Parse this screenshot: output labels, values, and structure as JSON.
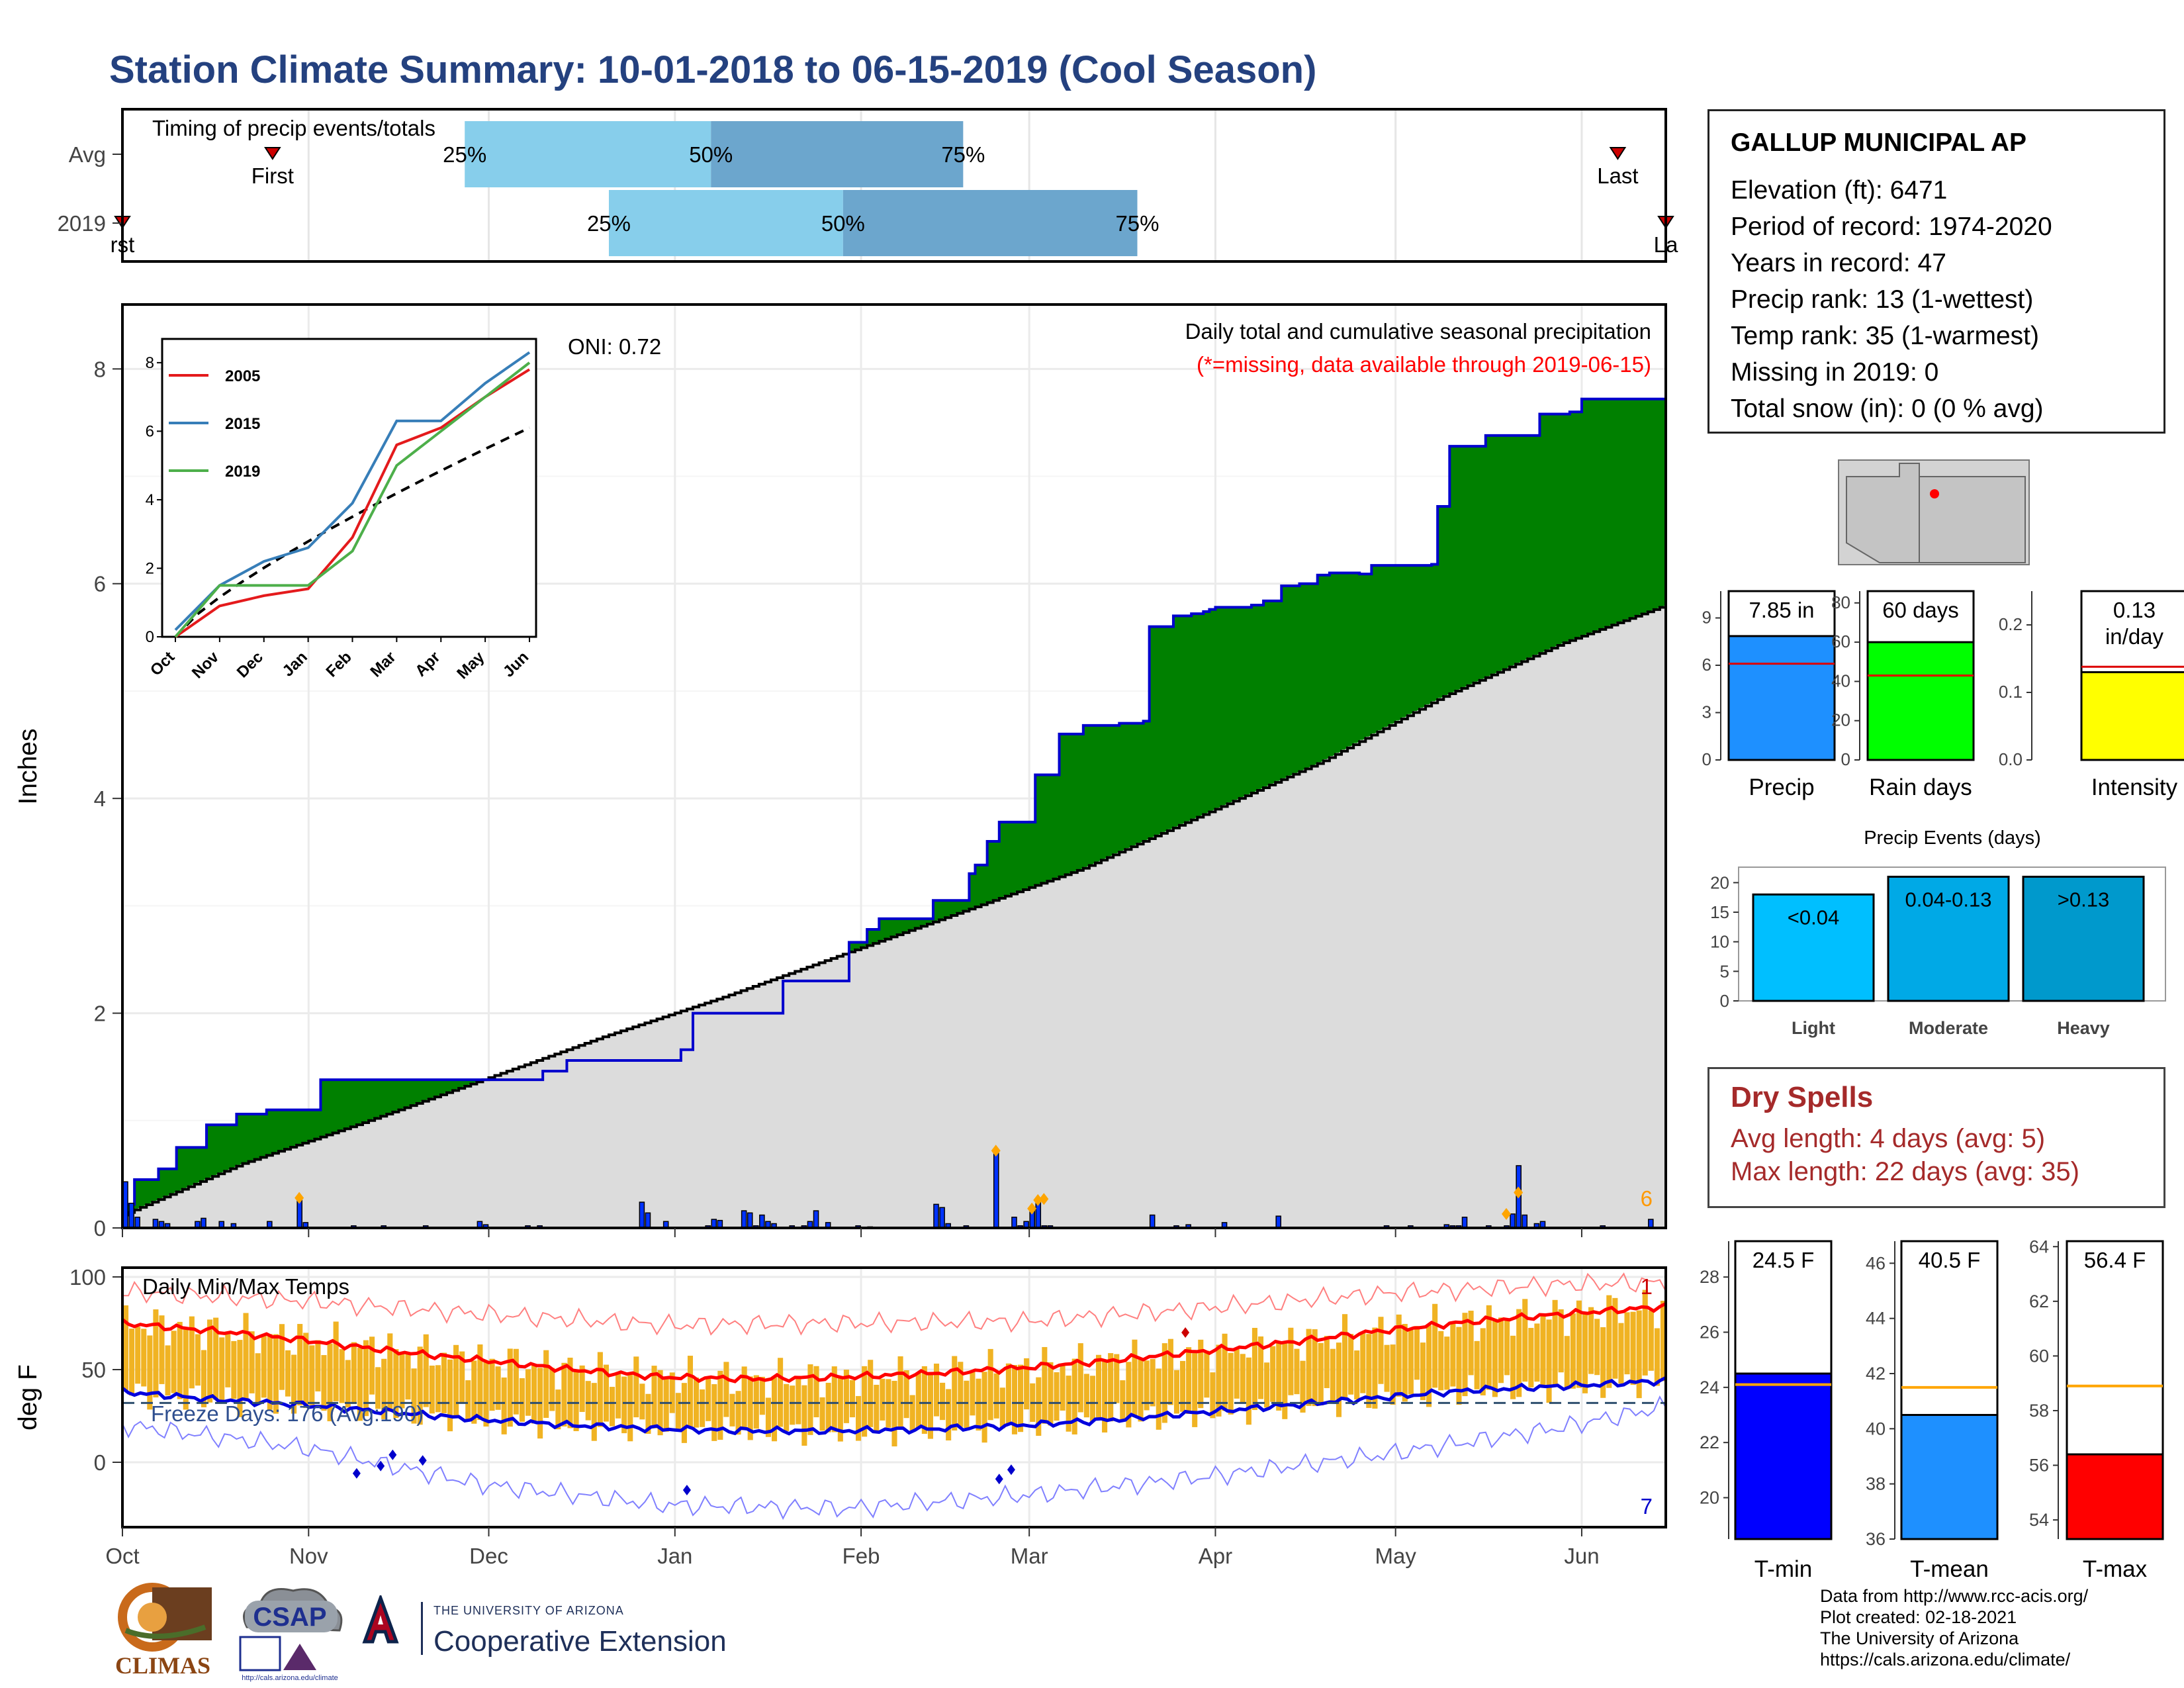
{
  "title": "Station Climate Summary: 10-01-2018 to 06-15-2019 (Cool Season)",
  "colors": {
    "title": "#24417f",
    "cumulative_avg_fill": "#dcdcdc",
    "above_avg_fill": "#008000",
    "below_avg_fill": "#8b5a00",
    "cumulative_line": "#0000cd",
    "daily_bars": "#0033ff",
    "temp_bars": "#f0b323",
    "tmax_avg": "#ff0000",
    "tmin_avg": "#0000dd",
    "records_max": "#ff8080",
    "records_min": "#8080ff",
    "dry_spells": "#a52a2a",
    "missing_note": "#ff0000",
    "count_label": "#ff9900"
  },
  "timing_panel": {
    "label": "Timing of precip events/totals",
    "rows": [
      {
        "name": "Avg",
        "first": "First",
        "last": "Last",
        "p25": "25%",
        "p50": "50%",
        "p75": "75%"
      },
      {
        "name": "2019",
        "first": "rst",
        "last": "La",
        "p25": "25%",
        "p50": "50%",
        "p75": "75%"
      }
    ]
  },
  "precip_panel": {
    "y_axis_label": "Inches",
    "y_ticks": [
      "0",
      "2",
      "4",
      "6",
      "8"
    ],
    "subtitle": "Daily total and cumulative seasonal precipitation",
    "missing_note": "(*=missing, data available through 2019-06-15)",
    "oni": "ONI: 0.72",
    "count_label": "6"
  },
  "inset": {
    "legend": [
      "2005",
      "2015",
      "2019"
    ],
    "legend_colors": [
      "#e41a1c",
      "#377eb8",
      "#4daf4a"
    ],
    "y_ticks": [
      "0",
      "2",
      "4",
      "6",
      "8"
    ],
    "x_ticks": [
      "Oct",
      "Nov",
      "Dec",
      "Jan",
      "Feb",
      "Mar",
      "Apr",
      "May",
      "Jun"
    ]
  },
  "temp_panel": {
    "y_axis_label": "deg F",
    "y_ticks": [
      "0",
      "50",
      "100"
    ],
    "title": "Daily Min/Max Temps",
    "freeze_days": "Freeze Days: 176 (Avg:190)",
    "record_high_count": "1",
    "record_low_count": "7"
  },
  "x_axis_months": [
    "Oct",
    "Nov",
    "Dec",
    "Jan",
    "Feb",
    "Mar",
    "Apr",
    "May",
    "Jun"
  ],
  "station_info": {
    "name": "GALLUP MUNICIPAL AP",
    "lines": [
      "Elevation (ft): 6471",
      "Period of record: 1974-2020",
      "Years in record: 47",
      "Precip rank: 13 (1-wettest)",
      "Temp rank: 35 (1-warmest)",
      "Missing in 2019: 0",
      "Total snow (in): 0 (0 % avg)"
    ]
  },
  "summary_bars": {
    "precip": {
      "label": "Precip",
      "value_text": "7.85 in",
      "value": 7.85,
      "avg": 6.1,
      "ymax": 10.7,
      "ticks": [
        "0",
        "3",
        "6",
        "9"
      ],
      "color": "#1e90ff"
    },
    "rain_days": {
      "label": "Rain days",
      "value_text": "60 days",
      "value": 60,
      "avg": 43,
      "ymax": 86,
      "ticks": [
        "0",
        "20",
        "40",
        "60",
        "80"
      ],
      "color": "#00ff00"
    },
    "intensity": {
      "label": "Intensity",
      "value_text": "0.13",
      "value_text2": "in/day",
      "value": 0.13,
      "avg": 0.138,
      "ymax": 0.25,
      "ticks": [
        "0.0",
        "0.1",
        "0.2"
      ],
      "color": "#ffff00"
    }
  },
  "precip_events": {
    "title": "Precip Events (days)",
    "categories": [
      "Light",
      "Moderate",
      "Heavy"
    ],
    "labels": [
      "<0.04",
      "0.04-0.13",
      ">0.13"
    ],
    "values": [
      18,
      21,
      21
    ],
    "ticks": [
      "0",
      "5",
      "10",
      "15",
      "20"
    ],
    "colors": [
      "#00bfff",
      "#00a9e6",
      "#0099cc"
    ]
  },
  "dry_spells": {
    "title": "Dry Spells",
    "avg_length": "Avg length: 4 days (avg: 5)",
    "max_length": "Max length: 22 days (avg: 35)"
  },
  "temp_bars": {
    "tmin": {
      "label": "T-min",
      "value_text": "24.5 F",
      "value": 24.5,
      "avg": 24.1,
      "ylim": [
        18.5,
        29.3
      ],
      "ticks": [
        "20",
        "22",
        "24",
        "26",
        "28"
      ],
      "color": "#0000ff"
    },
    "tmean": {
      "label": "T-mean",
      "value_text": "40.5 F",
      "value": 40.5,
      "avg": 41.5,
      "ylim": [
        36,
        46.8
      ],
      "ticks": [
        "36",
        "38",
        "40",
        "42",
        "44",
        "46"
      ],
      "color": "#1e90ff"
    },
    "tmax": {
      "label": "T-max",
      "value_text": "56.4 F",
      "value": 56.4,
      "avg": 58.9,
      "ylim": [
        53.3,
        64.2
      ],
      "ticks": [
        "54",
        "56",
        "58",
        "60",
        "62",
        "64"
      ],
      "color": "#ff0000"
    }
  },
  "credits": [
    "Data from http://www.rcc-acis.org/",
    "Plot created: 02-18-2021",
    "The University of Arizona",
    "https://cals.arizona.edu/climate/"
  ],
  "logos": {
    "climas": "CLIMAS",
    "csap": "CSAP",
    "csap_url": "http://cals.arizona.edu/climate",
    "coop_small": "THE UNIVERSITY OF ARIZONA",
    "coop_big": "Cooperative Extension"
  },
  "chart_data": [
    {
      "type": "area",
      "title": "Daily total and cumulative seasonal precipitation",
      "ylabel": "Inches",
      "ylim": [
        0,
        8.6
      ],
      "x_range_days": [
        0,
        257
      ],
      "series": [
        {
          "name": "cumulative_2019",
          "x": [
            0,
            2,
            6,
            9,
            14,
            19,
            24,
            33,
            40,
            46,
            56,
            64,
            70,
            74,
            78,
            84,
            89,
            93,
            95,
            104,
            110,
            117,
            121,
            124,
            126,
            135,
            141,
            142,
            144,
            146,
            152,
            156,
            160,
            163,
            166,
            170,
            171,
            175,
            178,
            180,
            181,
            182,
            188,
            190,
            193,
            196,
            199,
            201,
            206,
            208,
            218,
            219,
            221,
            227,
            236,
            241,
            243,
            246,
            247,
            254,
            255,
            257
          ],
          "values": [
            0.22,
            0.45,
            0.55,
            0.75,
            0.96,
            1.06,
            1.1,
            1.38,
            1.38,
            1.38,
            1.38,
            1.38,
            1.46,
            1.56,
            1.56,
            1.56,
            1.56,
            1.66,
            2.0,
            2.0,
            2.3,
            2.3,
            2.66,
            2.78,
            2.88,
            3.05,
            3.3,
            3.38,
            3.6,
            3.78,
            4.22,
            4.6,
            4.68,
            4.68,
            4.7,
            4.72,
            5.6,
            5.7,
            5.72,
            5.74,
            5.76,
            5.78,
            5.8,
            5.84,
            5.98,
            6.0,
            6.08,
            6.1,
            6.09,
            6.17,
            6.18,
            6.72,
            7.28,
            7.38,
            7.58,
            7.6,
            7.72,
            7.72,
            7.72,
            7.72,
            7.72,
            7.85
          ]
        },
        {
          "name": "cumulative_avg",
          "x": [
            0,
            20,
            40,
            60,
            80,
            100,
            120,
            140,
            160,
            180,
            200,
            220,
            240,
            257
          ],
          "values": [
            0.12,
            0.6,
            0.98,
            1.38,
            1.78,
            2.15,
            2.55,
            2.95,
            3.35,
            3.85,
            4.35,
            4.95,
            5.45,
            5.8
          ]
        }
      ],
      "daily_bars": {
        "x": [
          0,
          1,
          2,
          5,
          6,
          7,
          12,
          13,
          16,
          18,
          24,
          29,
          30,
          38,
          43,
          50,
          59,
          60,
          67,
          69,
          86,
          87,
          90,
          97,
          98,
          99,
          103,
          104,
          105,
          106,
          107,
          108,
          111,
          113,
          114,
          115,
          117,
          122,
          124,
          135,
          136,
          137,
          140,
          145,
          148,
          149,
          150,
          151,
          152,
          153,
          154,
          171,
          175,
          177,
          183,
          192,
          210,
          214,
          220,
          221,
          222,
          223,
          227,
          230,
          231,
          232,
          233,
          235,
          236,
          246,
          254
        ],
        "values": [
          0.43,
          0.23,
          0.1,
          0.08,
          0.06,
          0.04,
          0.06,
          0.09,
          0.06,
          0.04,
          0.06,
          0.28,
          0.05,
          0.02,
          0.02,
          0.02,
          0.06,
          0.03,
          0.02,
          0.02,
          0.24,
          0.14,
          0.06,
          0.02,
          0.08,
          0.07,
          0.16,
          0.14,
          0.02,
          0.12,
          0.06,
          0.04,
          0.02,
          0.02,
          0.06,
          0.16,
          0.05,
          0.02,
          0.01,
          0.22,
          0.19,
          0.04,
          0.02,
          0.72,
          0.1,
          0.02,
          0.06,
          0.18,
          0.26,
          0.02,
          0.02,
          0.12,
          0.02,
          0.03,
          0.05,
          0.11,
          0.02,
          0.02,
          0.03,
          0.02,
          0.02,
          0.1,
          0.02,
          0.02,
          0.13,
          0.58,
          0.12,
          0.04,
          0.06,
          0.02,
          0.08
        ]
      }
    },
    {
      "type": "line",
      "title": "Daily Min/Max Temps",
      "ylabel": "deg F",
      "ylim": [
        -35,
        105
      ],
      "x_range_days": [
        0,
        257
      ],
      "series": [
        {
          "name": "tmax_avg",
          "x": [
            0,
            15,
            30,
            45,
            60,
            75,
            90,
            105,
            120,
            135,
            150,
            165,
            180,
            195,
            210,
            225,
            240,
            257
          ],
          "values": [
            75,
            71,
            66,
            60,
            55,
            50,
            46,
            45,
            46,
            48,
            51,
            55,
            60,
            65,
            71,
            76,
            80,
            84
          ]
        },
        {
          "name": "tmin_avg",
          "x": [
            0,
            15,
            30,
            45,
            60,
            75,
            90,
            105,
            120,
            135,
            150,
            165,
            180,
            195,
            210,
            225,
            240,
            257
          ],
          "values": [
            38,
            34,
            31,
            27,
            23,
            20,
            18,
            17,
            17,
            18,
            20,
            23,
            27,
            31,
            35,
            39,
            41,
            44
          ]
        },
        {
          "name": "record_high",
          "x": [
            0,
            30,
            60,
            90,
            120,
            150,
            180,
            210,
            240,
            257
          ],
          "values": [
            92,
            87,
            80,
            74,
            75,
            76,
            83,
            91,
            96,
            97
          ]
        },
        {
          "name": "record_low",
          "x": [
            0,
            30,
            60,
            90,
            120,
            150,
            180,
            210,
            240,
            257
          ],
          "values": [
            20,
            8,
            -12,
            -23,
            -25,
            -18,
            -8,
            4,
            19,
            30
          ]
        }
      ]
    },
    {
      "type": "line",
      "title": "",
      "x": [
        "Oct",
        "Nov",
        "Dec",
        "Jan",
        "Feb",
        "Mar",
        "Apr",
        "May",
        "Jun"
      ],
      "ylim": [
        0,
        8.5
      ],
      "series": [
        {
          "name": "2005",
          "values": [
            0,
            0.9,
            1.2,
            1.4,
            2.9,
            5.6,
            6.1,
            7.0,
            7.8
          ]
        },
        {
          "name": "2015",
          "values": [
            0.2,
            1.5,
            2.2,
            2.6,
            3.9,
            6.3,
            6.3,
            7.4,
            8.3
          ]
        },
        {
          "name": "2019",
          "values": [
            0,
            1.5,
            1.5,
            1.5,
            2.5,
            5.0,
            6.0,
            7.0,
            8.0
          ]
        }
      ]
    },
    {
      "type": "bar",
      "title": "Precip Events (days)",
      "categories": [
        "Light",
        "Moderate",
        "Heavy"
      ],
      "values": [
        18,
        21,
        21
      ]
    }
  ]
}
